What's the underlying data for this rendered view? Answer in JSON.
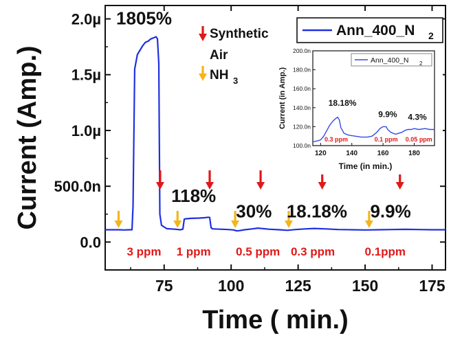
{
  "chart_data": {
    "type": "line",
    "xlabel": "Time ( min.)",
    "ylabel": "Current (Amp.)",
    "xlim": [
      53,
      180
    ],
    "ylim": [
      -2.5e-07,
      2.12e-06
    ],
    "xticks": [
      75,
      100,
      125,
      150,
      175
    ],
    "xtick_labels": [
      "75",
      "100",
      "125",
      "150",
      "175"
    ],
    "yticks": [
      0,
      5e-07,
      1e-06,
      1.5e-06,
      2e-06
    ],
    "ytick_labels": [
      "0.0",
      "500.0n",
      "1.0µ",
      "1.5µ",
      "2.0µ"
    ],
    "legend": {
      "label": "Ann_400_N",
      "subscript": "2",
      "color": "#1f2fe0",
      "placement": "top-right"
    },
    "series": [
      {
        "name": "Ann_400_N2",
        "color": "#1f2fe0",
        "x": [
          53,
          58,
          60,
          62,
          63,
          63.4,
          64,
          65,
          66,
          67,
          68,
          69,
          70,
          71,
          72,
          72.5,
          73,
          73.4,
          74,
          76,
          79,
          81,
          82,
          82.5,
          83,
          85,
          88,
          90,
          91.5,
          92,
          92.5,
          93,
          96,
          99,
          101,
          102,
          103,
          105,
          108,
          110,
          112,
          114,
          118,
          121,
          124,
          128,
          131,
          135,
          140,
          145,
          150,
          155,
          160,
          165,
          170,
          175,
          180
        ],
        "y": [
          1.1e-07,
          1.1e-07,
          1.08e-07,
          1.1e-07,
          1.1e-07,
          3.2e-07,
          1.55e-06,
          1.68e-06,
          1.72e-06,
          1.76e-06,
          1.79e-06,
          1.8e-06,
          1.82e-06,
          1.83e-06,
          1.84e-06,
          1.82e-06,
          1.6e-06,
          2.5e-07,
          1.5e-07,
          1.2e-07,
          1.15e-07,
          1.1e-07,
          1.15e-07,
          2.05e-07,
          2.08e-07,
          2.12e-07,
          2.15e-07,
          2.18e-07,
          2.22e-07,
          2.2e-07,
          1.3e-07,
          1.18e-07,
          1.15e-07,
          1.12e-07,
          1.08e-07,
          1e-07,
          1.02e-07,
          1.1e-07,
          1.18e-07,
          1.25e-07,
          1.2e-07,
          1.15e-07,
          1.1e-07,
          1.05e-07,
          1.12e-07,
          1.18e-07,
          1.22e-07,
          1.18e-07,
          1.12e-07,
          1.1e-07,
          1.08e-07,
          1.1e-07,
          1.12e-07,
          1.14e-07,
          1.12e-07,
          1.1e-07,
          1.1e-07
        ]
      }
    ],
    "annotations": [
      {
        "text": "1805%",
        "x": 67.5,
        "y": 1.95e-06
      },
      {
        "text": "118%",
        "x": 86,
        "y": 3.6e-07
      },
      {
        "text": "30%",
        "x": 108.5,
        "y": 2.2e-07
      },
      {
        "text": "18.18%",
        "x": 132,
        "y": 2.2e-07
      },
      {
        "text": "9.9%",
        "x": 159.5,
        "y": 2.2e-07
      }
    ],
    "concentration_labels": [
      {
        "text": "3 ppm",
        "x": 67.5
      },
      {
        "text": "1 ppm",
        "x": 86
      },
      {
        "text": "0.5 ppm",
        "x": 110
      },
      {
        "text": "0.3 ppm",
        "x": 130.5
      },
      {
        "text": "0.1ppm",
        "x": 157.5
      }
    ],
    "synthetic_air_arrows": [
      73.5,
      92,
      111,
      134,
      163
    ],
    "nh3_arrows": [
      58,
      80,
      101.5,
      121.5,
      151.5
    ],
    "arrow_legend": {
      "air_label_line1": "Synthetic",
      "air_label_line2": "Air",
      "nh3_label": "NH",
      "nh3_subscript": "3",
      "air_color": "#e01818",
      "nh3_color": "#f2b61c"
    },
    "inset": {
      "type": "line",
      "xlabel": "Time (in min.)",
      "ylabel": "Current (in Amp.)",
      "xlim": [
        115,
        193
      ],
      "ylim": [
        1e-07,
        2e-07
      ],
      "xticks": [
        120,
        140,
        160,
        180
      ],
      "xtick_labels": [
        "120",
        "140",
        "160",
        "180"
      ],
      "yticks": [
        1e-07,
        1.2e-07,
        1.4e-07,
        1.6e-07,
        1.8e-07,
        2e-07
      ],
      "ytick_labels": [
        "100.0n",
        "120.0n",
        "140.0n",
        "160.0n",
        "180.0n",
        "200.0n"
      ],
      "legend": {
        "label": "Ann_400_N",
        "subscript": "2"
      },
      "series": [
        {
          "name": "Ann_400_N2",
          "color": "#3548e8",
          "x": [
            115,
            118,
            120,
            122,
            124,
            126,
            128,
            130,
            131,
            132,
            133,
            135,
            138,
            142,
            146,
            150,
            153,
            156,
            158,
            160,
            162,
            163,
            165,
            168,
            170,
            172,
            174,
            176,
            178,
            180,
            183,
            187,
            190,
            193
          ],
          "y": [
            1.04e-07,
            1.05e-07,
            1.06e-07,
            1.1e-07,
            1.16e-07,
            1.22e-07,
            1.26e-07,
            1.29e-07,
            1.3e-07,
            1.27e-07,
            1.19e-07,
            1.13e-07,
            1.11e-07,
            1.1e-07,
            1.09e-07,
            1.09e-07,
            1.1e-07,
            1.14e-07,
            1.18e-07,
            1.2e-07,
            1.2e-07,
            1.17e-07,
            1.14e-07,
            1.12e-07,
            1.13e-07,
            1.14e-07,
            1.16e-07,
            1.17e-07,
            1.17e-07,
            1.18e-07,
            1.17e-07,
            1.18e-07,
            1.17e-07,
            1.17e-07
          ]
        }
      ],
      "annotations": [
        {
          "text": "18.18%",
          "x": 134,
          "y": 1.42e-07
        },
        {
          "text": "9.9%",
          "x": 163,
          "y": 1.3e-07
        },
        {
          "text": "4.3%",
          "x": 182,
          "y": 1.27e-07
        }
      ],
      "concentration_labels": [
        {
          "text": "0.3 ppm",
          "x": 130
        },
        {
          "text": "0.1 ppm",
          "x": 162
        },
        {
          "text": "0.05 ppm",
          "x": 183
        }
      ]
    }
  }
}
